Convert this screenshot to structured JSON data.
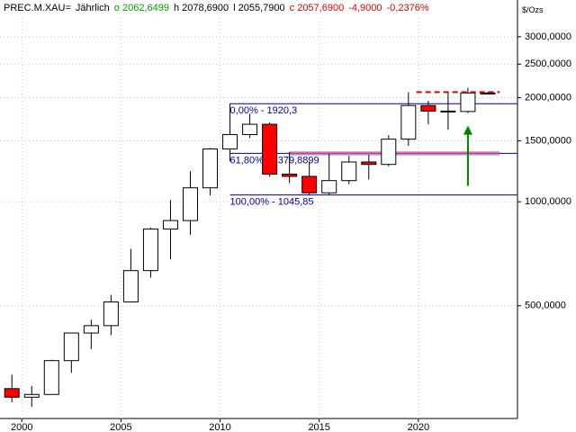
{
  "chart_data": {
    "type": "candlestick",
    "header": {
      "symbol": "PREC.M.XAU=",
      "period": "Jährlich",
      "open": "o 2062,6499",
      "high": "h 2078,6900",
      "low": "l 2055,7900",
      "close": "c 2057,6900",
      "change": "-4,9000",
      "change_pct": "-0,2376%"
    },
    "unit": "$/Ozs",
    "x": [
      2000,
      2001,
      2002,
      2003,
      2004,
      2005,
      2006,
      2007,
      2008,
      2009,
      2010,
      2011,
      2012,
      2013,
      2014,
      2015,
      2016,
      2017,
      2018,
      2019,
      2020,
      2021,
      2022,
      2023,
      2024
    ],
    "open": [
      288,
      272,
      277,
      347,
      417,
      438,
      513,
      632,
      834,
      882,
      1097,
      1421,
      1564,
      1675,
      1202,
      1184,
      1061,
      1151,
      1303,
      1282,
      1517,
      1898,
      1829,
      1824,
      2062.6499
    ],
    "high": [
      316,
      293,
      349,
      417,
      456,
      538,
      730,
      842,
      1011,
      1227,
      1431,
      1921,
      1796,
      1696,
      1392,
      1308,
      1375,
      1358,
      1366,
      1557,
      2075,
      1959,
      2070,
      2135,
      2078.69
    ],
    "low": [
      263,
      255,
      277,
      320,
      375,
      411,
      513,
      603,
      681,
      802,
      1044,
      1308,
      1527,
      1180,
      1132,
      1046,
      1046,
      1123,
      1160,
      1266,
      1451,
      1677,
      1615,
      1805,
      2055.79
    ],
    "close": [
      272,
      277,
      347,
      417,
      438,
      513,
      632,
      834,
      882,
      1097,
      1421,
      1564,
      1675,
      1202,
      1184,
      1061,
      1151,
      1303,
      1282,
      1517,
      1898,
      1829,
      1824,
      2063,
      2057.69
    ],
    "up_color": "#ffffff",
    "down_color": "#ff0000",
    "log_scale": true,
    "grid": true,
    "xlim": [
      1998.9,
      2025
    ],
    "xticks": [
      2000,
      2005,
      2010,
      2015,
      2020
    ],
    "ylim": [
      236,
      3400
    ],
    "yticks": [
      {
        "value": 500,
        "label": "500,0000"
      },
      {
        "value": 1000,
        "label": "1000,0000"
      },
      {
        "value": 1500,
        "label": "1500,0000"
      },
      {
        "value": 2000,
        "label": "2000,0000"
      },
      {
        "value": 2500,
        "label": "2500,0000"
      },
      {
        "value": 3000,
        "label": "3000,0000"
      }
    ],
    "fib_levels": [
      {
        "value": 1920.3,
        "label": "0,00% - 1920,3"
      },
      {
        "value": 1379.8899,
        "label": "61,80% - 1379,8899"
      },
      {
        "value": 1045.85,
        "label": "100,00% - 1045,85"
      }
    ],
    "fib_color": "#000090",
    "fib_start": 2010.5,
    "hlines": [
      {
        "value": 1392,
        "color": "#ff4040",
        "start": 2013.5,
        "end": 2024.1
      },
      {
        "value": 1380,
        "color": "#c040c0",
        "start": 2013.5,
        "end": 2024.1
      },
      {
        "value": 1368,
        "color": "#6060c0",
        "start": 2013.5,
        "end": 2024.1
      }
    ],
    "resistance": {
      "value": 2075,
      "color": "#e00000",
      "start": 2019.9,
      "end": 2024.1
    },
    "arrow": {
      "x": 2023,
      "from": 1112,
      "to": 1660,
      "color": "#008000"
    }
  }
}
